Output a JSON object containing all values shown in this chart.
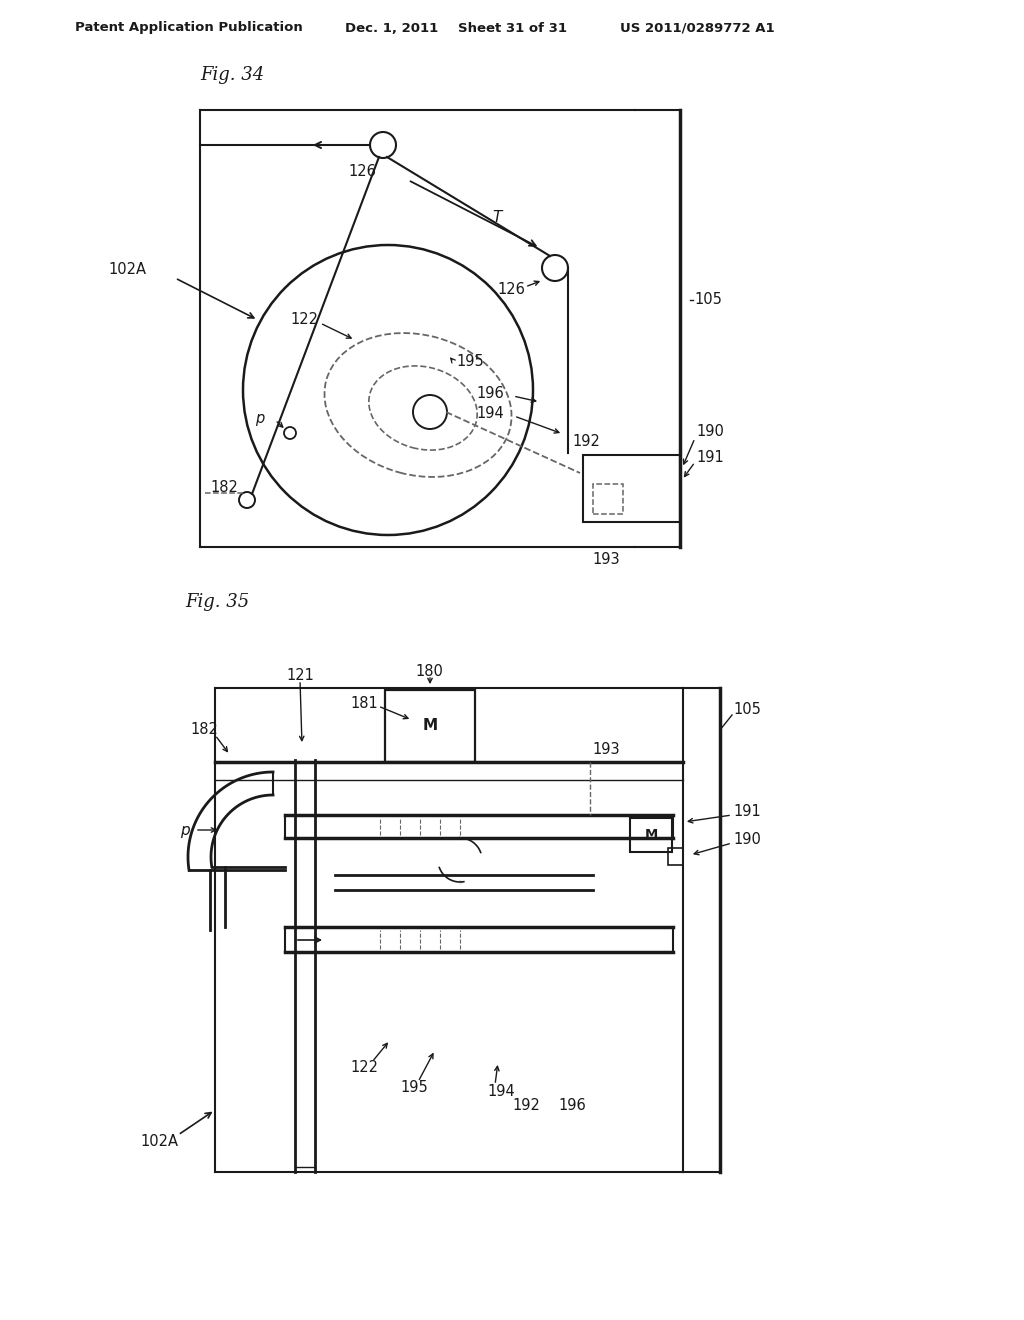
{
  "background_color": "#ffffff",
  "header_text": "Patent Application Publication",
  "header_date": "Dec. 1, 2011",
  "header_sheet": "Sheet 31 of 31",
  "header_patent": "US 2011/0289772 A1",
  "fig34_title": "Fig. 34",
  "fig35_title": "Fig. 35",
  "lc": "#1a1a1a",
  "dc": "#666666",
  "gray": "#888888"
}
